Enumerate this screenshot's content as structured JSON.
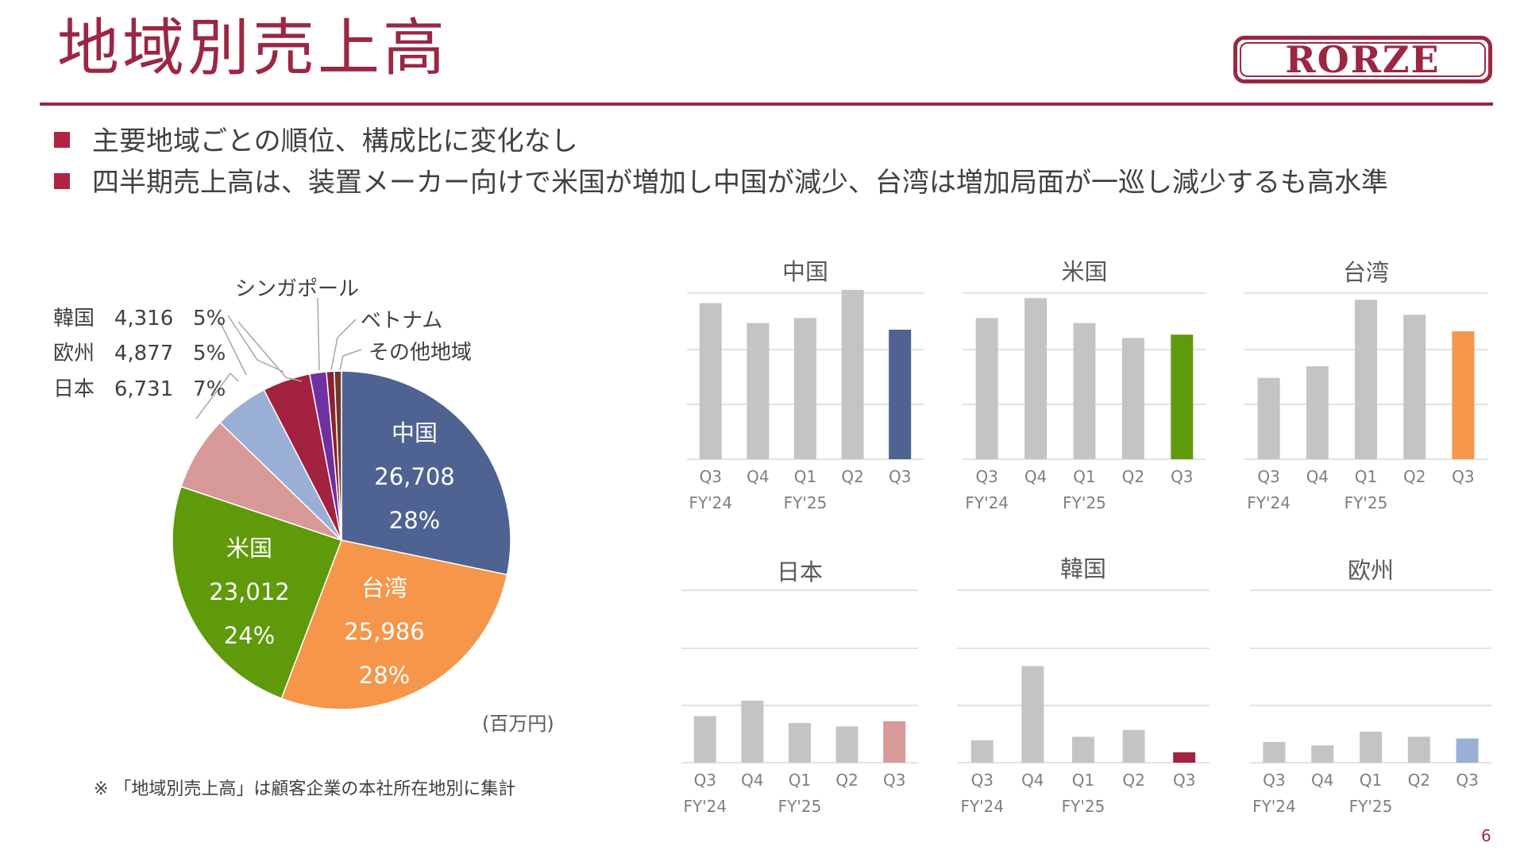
{
  "header": {
    "title": "地域別売上高",
    "logo_text": "RORZE"
  },
  "bullets": [
    "主要地域ごとの順位、構成比に変化なし",
    "四半期売上高は、装置メーカー向けで米国が増加し中国が減少、台湾は増加局面が一巡し減少するも高水準"
  ],
  "pie_labels": {
    "korea": {
      "name": "韓国",
      "value": "4,316",
      "pct": "5%"
    },
    "europe": {
      "name": "欧州",
      "value": "4,877",
      "pct": "5%"
    },
    "japan": {
      "name": "日本",
      "value": "6,731",
      "pct": "7%"
    },
    "singapore": "シンガポール",
    "vietnam": "ベトナム",
    "others": "その他地域",
    "china": {
      "name": "中国",
      "value": "26,708",
      "pct": "28%"
    },
    "usa": {
      "name": "米国",
      "value": "23,012",
      "pct": "24%"
    },
    "taiwan": {
      "name": "台湾",
      "value": "25,986",
      "pct": "28%"
    }
  },
  "unit_label": "(百万円)",
  "footnote": "※ 「地域別売上高」は顧客企業の本社所在地別に集計",
  "page_number": "6",
  "colors": {
    "brand": "#9b2743",
    "china": "#4f6392",
    "usa": "#5f9a0a",
    "taiwan": "#f5964a",
    "japan": "#d89a99",
    "europe": "#9aafd6",
    "korea": "#a3223f",
    "singapore": "#7030a0",
    "vietnam": "#8b2232",
    "others": "#6b3a2a",
    "bar_gray": "#c4c4c4"
  },
  "chart_data": [
    {
      "type": "pie",
      "title": "地域別売上高",
      "unit": "百万円",
      "categories": [
        "中国",
        "台湾",
        "米国",
        "日本",
        "欧州",
        "韓国",
        "シンガポール",
        "ベトナム",
        "その他地域"
      ],
      "values": [
        26708,
        25986,
        23012,
        6731,
        4877,
        4316,
        1500,
        700,
        650
      ]
    },
    {
      "type": "bar",
      "title": "中国",
      "categories": [
        "Q3",
        "Q4",
        "Q1",
        "Q2",
        "Q3"
      ],
      "fiscal_labels": [
        "FY'24",
        "FY'25"
      ],
      "values": [
        9.4,
        8.2,
        8.5,
        10.2,
        7.8
      ],
      "ylim": [
        0,
        10
      ],
      "highlight_color": "#4f6392"
    },
    {
      "type": "bar",
      "title": "米国",
      "categories": [
        "Q3",
        "Q4",
        "Q1",
        "Q2",
        "Q3"
      ],
      "fiscal_labels": [
        "FY'24",
        "FY'25"
      ],
      "values": [
        8.5,
        9.7,
        8.2,
        7.3,
        7.5
      ],
      "ylim": [
        0,
        10
      ],
      "highlight_color": "#5f9a0a"
    },
    {
      "type": "bar",
      "title": "台湾",
      "categories": [
        "Q3",
        "Q4",
        "Q1",
        "Q2",
        "Q3"
      ],
      "fiscal_labels": [
        "FY'24",
        "FY'25"
      ],
      "values": [
        4.9,
        5.6,
        9.6,
        8.7,
        7.7
      ],
      "ylim": [
        0,
        10
      ],
      "highlight_color": "#f5964a"
    },
    {
      "type": "bar",
      "title": "日本",
      "categories": [
        "Q3",
        "Q4",
        "Q1",
        "Q2",
        "Q3"
      ],
      "fiscal_labels": [
        "FY'24",
        "FY'25"
      ],
      "values": [
        2.7,
        3.6,
        2.3,
        2.1,
        2.4
      ],
      "ylim": [
        0,
        10
      ],
      "highlight_color": "#d89a99"
    },
    {
      "type": "bar",
      "title": "韓国",
      "categories": [
        "Q3",
        "Q4",
        "Q1",
        "Q2",
        "Q3"
      ],
      "fiscal_labels": [
        "FY'24",
        "FY'25"
      ],
      "values": [
        1.3,
        5.6,
        1.5,
        1.9,
        0.6
      ],
      "ylim": [
        0,
        10
      ],
      "highlight_color": "#a3223f"
    },
    {
      "type": "bar",
      "title": "欧州",
      "categories": [
        "Q3",
        "Q4",
        "Q1",
        "Q2",
        "Q3"
      ],
      "fiscal_labels": [
        "FY'24",
        "FY'25"
      ],
      "values": [
        1.2,
        1.0,
        1.8,
        1.5,
        1.4
      ],
      "ylim": [
        0,
        10
      ],
      "highlight_color": "#9aafd6"
    }
  ]
}
